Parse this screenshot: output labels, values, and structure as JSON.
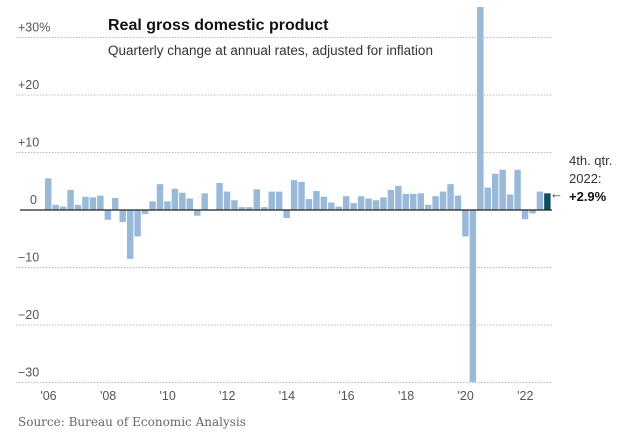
{
  "chart_data": {
    "type": "bar",
    "title": "Real gross domestic product",
    "subtitle": "Quarterly change at annual rates, adjusted for inflation",
    "source": "Source: Bureau of Economic Analysis",
    "xlabel": "",
    "ylabel": "",
    "ylim": [
      -30,
      35
    ],
    "y_ticks": [
      {
        "value": 30,
        "label": "+30%"
      },
      {
        "value": 20,
        "label": "+20"
      },
      {
        "value": 10,
        "label": "+10"
      },
      {
        "value": 0,
        "label": "0"
      },
      {
        "value": -10,
        "label": "−10"
      },
      {
        "value": -20,
        "label": "−20"
      },
      {
        "value": -30,
        "label": "−30"
      }
    ],
    "x_ticks": [
      "'06",
      "'08",
      "'10",
      "'12",
      "'14",
      "'16",
      "'18",
      "'20",
      "'22"
    ],
    "start_year": 2006,
    "values": [
      5.5,
      0.9,
      0.6,
      3.5,
      0.9,
      2.3,
      2.2,
      2.5,
      -1.7,
      2.1,
      -2.1,
      -8.5,
      -4.6,
      -0.7,
      1.5,
      4.5,
      1.5,
      3.7,
      3.0,
      2.0,
      -1.0,
      2.9,
      -0.1,
      4.7,
      3.2,
      1.7,
      0.5,
      0.5,
      3.6,
      0.5,
      3.2,
      3.2,
      -1.4,
      5.2,
      4.9,
      1.9,
      3.3,
      2.3,
      1.3,
      0.6,
      2.4,
      1.2,
      2.4,
      2.0,
      1.7,
      2.2,
      3.5,
      4.2,
      2.8,
      2.8,
      2.9,
      0.9,
      2.4,
      3.2,
      4.5,
      2.5,
      -4.6,
      -29.9,
      35.3,
      3.9,
      6.3,
      7.0,
      2.7,
      7.0,
      -1.6,
      -0.6,
      3.2,
      2.9
    ],
    "bar_color": "#9ab8d8",
    "highlight_color": "#0e4f5e",
    "grid": true,
    "annotation": {
      "line1": "4th. qtr.",
      "line2": "2022:",
      "value": "+2.9%",
      "arrow": "←"
    }
  }
}
